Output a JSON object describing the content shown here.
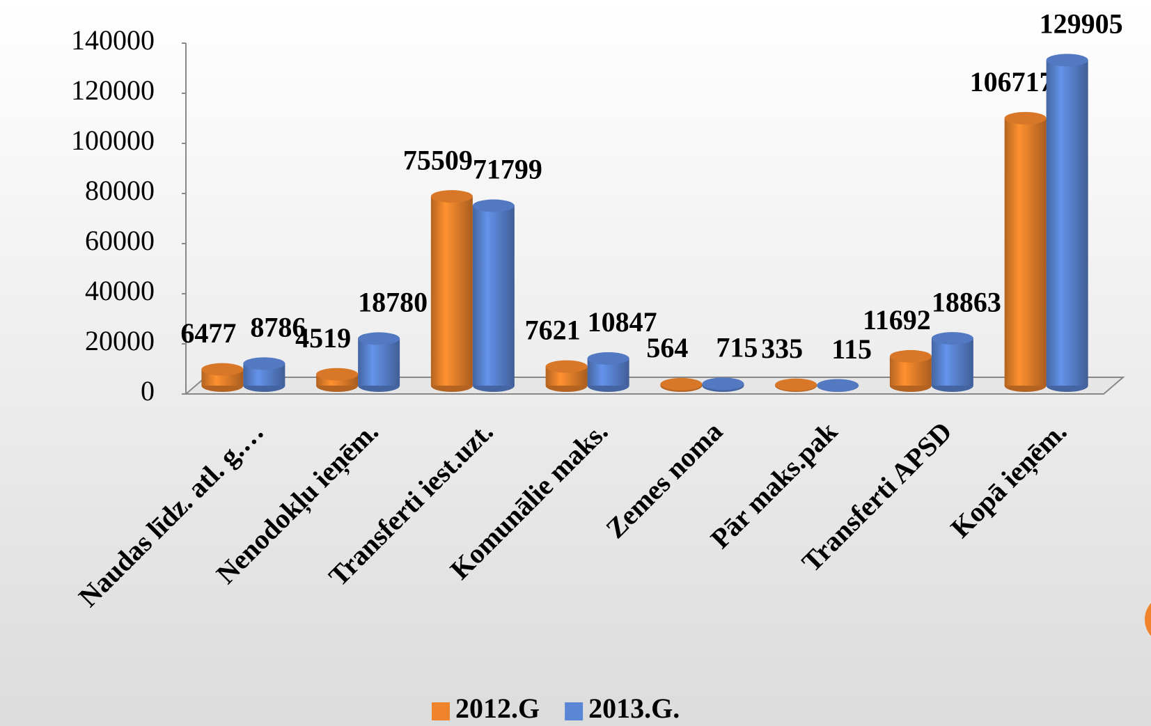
{
  "chart_data": {
    "type": "bar3d",
    "categories": [
      "Naudas līdz. atl. g.…",
      "Nenodokļu ieņēm.",
      "Transferti iest.uzt.",
      "Komunālie maks.",
      "Zemes noma",
      "Pār maks.pak",
      "Transferti APSD",
      "Kopā ieņēm."
    ],
    "series": [
      {
        "name": "2012.G",
        "color": "#f0842c",
        "values": [
          6477,
          4519,
          75509,
          7621,
          564,
          335,
          11692,
          106717
        ]
      },
      {
        "name": "2013.G.",
        "color": "#5b86d6",
        "values": [
          8786,
          18780,
          71799,
          10847,
          715,
          115,
          18863,
          129905
        ]
      }
    ],
    "ylim": [
      0,
      140000
    ],
    "yticks": [
      0,
      20000,
      40000,
      60000,
      80000,
      100000,
      120000,
      140000
    ],
    "legend": "bottom"
  }
}
